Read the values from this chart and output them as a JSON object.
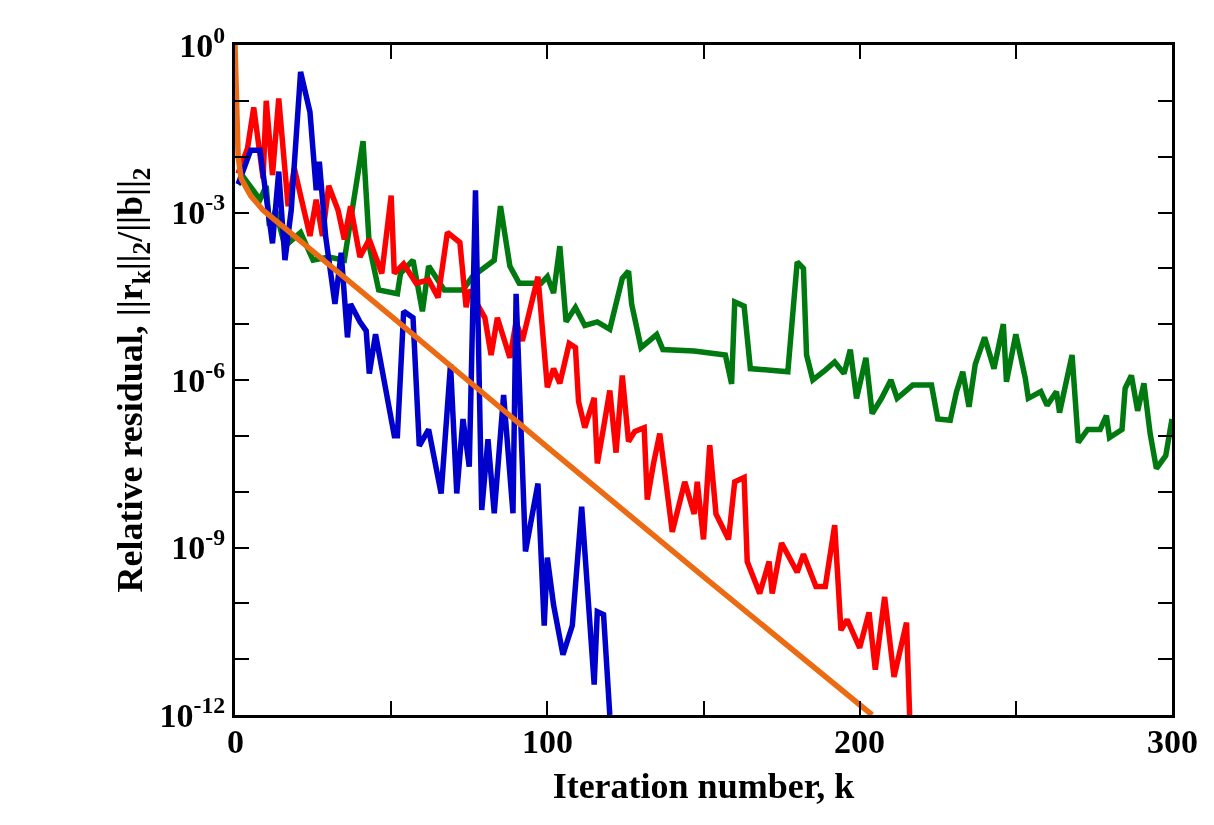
{
  "chart_data": {
    "type": "line",
    "xlabel": "Iteration number, k",
    "ylabel": "Relative residual, ||r$_{k}$||$_{2}$/||b||$_{2}$",
    "log": "y",
    "marker": "none",
    "line_style": "solid",
    "xlim": [
      0,
      300
    ],
    "xticks": [
      0,
      {
        "value": 50,
        "label": null
      },
      100,
      {
        "value": 150,
        "label": null
      },
      200,
      {
        "value": 250,
        "label": null
      },
      300
    ],
    "ylim": [
      1e-12,
      1
    ],
    "yticks": [
      {
        "value": 1,
        "label": "10$^{0}$"
      },
      {
        "value": 0.1,
        "label": null
      },
      {
        "value": 0.01,
        "label": null
      },
      {
        "value": 0.001,
        "label": "10$^{-3}$"
      },
      {
        "value": 0.0001,
        "label": null
      },
      {
        "value": 1e-05,
        "label": null
      },
      {
        "value": 1e-06,
        "label": "10$^{-6}$"
      },
      {
        "value": 1e-07,
        "label": null
      },
      {
        "value": 1e-08,
        "label": null
      },
      {
        "value": 1e-09,
        "label": "10$^{-9}$"
      },
      {
        "value": 1e-10,
        "label": null
      },
      {
        "value": 1e-11,
        "label": null
      },
      {
        "value": 1e-12,
        "label": "10$^{-12}$"
      }
    ],
    "series": [
      {
        "color": "#007a10",
        "x": [
          1,
          3,
          8,
          10,
          11,
          13,
          16,
          21,
          25,
          30,
          35,
          41,
          43,
          46,
          52,
          53,
          57,
          60,
          62,
          67,
          73,
          76,
          83,
          85,
          88,
          91,
          98,
          100,
          102,
          104,
          106,
          109,
          112,
          116,
          120,
          124,
          126,
          127,
          130,
          135,
          137,
          147,
          157,
          159,
          160,
          163,
          165,
          177,
          180,
          182,
          183,
          185,
          189,
          192,
          195,
          197,
          199,
          202,
          204,
          207,
          210,
          212,
          217,
          223,
          225,
          229,
          231,
          233,
          235,
          237,
          240,
          243,
          246,
          247,
          250,
          253,
          254,
          258,
          260,
          263,
          264,
          268,
          270,
          273,
          277,
          279,
          280,
          284,
          285,
          287,
          289,
          291,
          293,
          295,
          298,
          300
        ],
        "values": [
          0.0032,
          0.0041,
          0.0017,
          0.003,
          0.00058,
          0.0011,
          0.00025,
          0.00044,
          0.00014,
          0.00016,
          0.00014,
          0.019,
          0.00025,
          4.1e-05,
          3.5e-05,
          8.1e-05,
          0.00014,
          1.7e-05,
          0.00011,
          4.1e-05,
          4.1e-05,
          7.1e-05,
          0.00014,
          0.0013,
          0.00011,
          5.4e-05,
          5.4e-05,
          7.1e-05,
          3.6e-05,
          0.00025,
          1.1e-05,
          2e-05,
          9.5e-06,
          1.1e-05,
          8.1e-06,
          6.6e-05,
          8.9e-05,
          2.3e-05,
          3.8e-06,
          6.5e-06,
          3.5e-06,
          3.3e-06,
          2.8e-06,
          8.5e-07,
          2.5e-05,
          2.1e-05,
          1.6e-06,
          1.4e-06,
          0.00013,
          0.0001,
          2.8e-06,
          1e-06,
          1.5e-06,
          2.1e-06,
          1.3e-06,
          3.5e-06,
          4.7e-07,
          2.5e-06,
          2.5e-07,
          4.7e-07,
          1e-06,
          4.7e-07,
          8.1e-07,
          8.1e-07,
          2e-07,
          1.9e-07,
          6.2e-07,
          1.4e-06,
          3.3e-07,
          1.9e-06,
          5.8e-06,
          1.6e-06,
          1e-05,
          9.3e-07,
          6.6e-06,
          1.1e-06,
          4.7e-07,
          6.2e-07,
          3.5e-07,
          6.2e-07,
          2.6e-07,
          2.8e-06,
          7.6e-08,
          1.3e-07,
          1.3e-07,
          2.3e-07,
          9.3e-08,
          1.3e-07,
          7.1e-07,
          1.2e-06,
          2.8e-07,
          8.7e-07,
          1.1e-07,
          2.6e-08,
          4.4e-08,
          2e-07
        ]
      },
      {
        "color": "#ff0000",
        "x": [
          1,
          4,
          6,
          9,
          10,
          12,
          14,
          17,
          19,
          21,
          24,
          26,
          28,
          30,
          33,
          35,
          37,
          40,
          43,
          47,
          50,
          51,
          54,
          58,
          62,
          65,
          68,
          72,
          74,
          75,
          80,
          82,
          84,
          88,
          90,
          92,
          97,
          100,
          102,
          104,
          107,
          109,
          110,
          112,
          115,
          116,
          118,
          120,
          122,
          124,
          126,
          128,
          131,
          132,
          134,
          136,
          140,
          144,
          147,
          148,
          150,
          152,
          154,
          158,
          160,
          163,
          164,
          168,
          171,
          172,
          175,
          180,
          182,
          186,
          189,
          192,
          194,
          196,
          200,
          203,
          205,
          208,
          211,
          215,
          216
        ],
        "values": [
          0.005,
          0.014,
          0.076,
          0.0041,
          0.1,
          0.0047,
          0.11,
          0.0013,
          0.0062,
          0.002,
          0.00038,
          0.0017,
          0.00038,
          0.003,
          0.0011,
          0.00033,
          0.0013,
          0.00016,
          0.00033,
          8.1e-05,
          0.002,
          8.1e-05,
          0.00012,
          5.4e-05,
          6.2e-05,
          3e-05,
          0.00044,
          0.00029,
          2e-05,
          4.1e-05,
          1.3e-05,
          2.8e-06,
          1.3e-05,
          2.5e-06,
          1.1e-05,
          5e-06,
          7.1e-05,
          7.4e-07,
          1.6e-06,
          8.7e-07,
          4.5e-06,
          3.8e-06,
          4.1e-07,
          1.4e-07,
          4.8e-07,
          3.2e-08,
          1.4e-07,
          6.5e-07,
          5e-08,
          1.2e-06,
          7.9e-08,
          1.2e-07,
          1.4e-07,
          7.2e-09,
          3.2e-08,
          1.1e-07,
          1.9e-09,
          1.5e-08,
          4e-09,
          1.5e-08,
          1.4e-09,
          6.8e-08,
          4e-09,
          1.4e-09,
          1.5e-08,
          1.8e-08,
          5.6e-10,
          1.5e-10,
          5.6e-10,
          1.5e-10,
          1.2e-09,
          3.6e-10,
          7.6e-10,
          2e-10,
          2e-10,
          2.5e-09,
          3.3e-11,
          5.1e-11,
          1.6e-11,
          6.9e-11,
          6.5e-12,
          1.3e-10,
          4.8e-12,
          4.5e-11,
          1e-12
        ]
      },
      {
        "color": "#0000cc",
        "x": [
          1,
          5,
          8,
          12,
          14,
          16,
          18,
          21,
          24,
          26,
          27,
          29,
          32,
          34,
          36,
          37,
          40,
          42,
          43,
          45,
          51,
          52,
          54,
          57,
          59,
          62,
          66,
          69,
          71,
          73,
          75,
          77,
          79,
          81,
          83,
          86,
          89,
          90,
          93,
          97,
          99,
          100,
          102,
          105,
          108,
          111,
          115,
          116,
          118,
          120
        ],
        "values": [
          0.0032,
          0.013,
          0.013,
          0.00028,
          0.0054,
          0.00014,
          0.0011,
          0.33,
          0.063,
          0.0025,
          0.0081,
          0.00038,
          2.3e-05,
          0.00019,
          5.8e-06,
          2.3e-05,
          1.1e-05,
          7.6e-06,
          1.3e-06,
          6.6e-06,
          1e-07,
          1e-07,
          1.7e-05,
          1.3e-05,
          6.6e-08,
          1.3e-07,
          9.3e-09,
          1.9e-06,
          9.3e-09,
          2e-07,
          2.8e-08,
          0.0025,
          4.7e-09,
          8.7e-08,
          4.1e-09,
          5.4e-07,
          4.1e-09,
          3.5e-05,
          8.5e-10,
          1.4e-08,
          4e-11,
          6.6e-10,
          9.3e-11,
          1.2e-11,
          4e-11,
          5.4e-09,
          3.5e-12,
          7.1e-11,
          6.3e-11,
          1e-12
        ]
      },
      {
        "color": "#ec6a12",
        "x": [
          0,
          1,
          2,
          3,
          5,
          9,
          50,
          100,
          150,
          204
        ],
        "values": [
          1,
          0.01,
          0.004,
          0.0032,
          0.002,
          0.0011,
          1.4e-05,
          6.3e-08,
          3e-10,
          1e-12
        ]
      }
    ]
  }
}
